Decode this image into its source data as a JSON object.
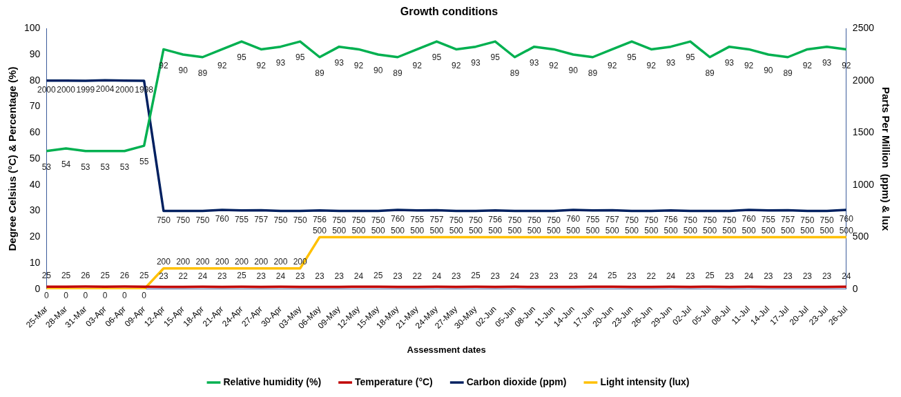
{
  "chart_data": {
    "type": "line",
    "title": "Growth conditions",
    "xlabel": "Assessment dates",
    "ylabel": "Degree Celsius (°C) & Percentage (%)",
    "y2label": "Parts Per Million  (ppm) & lux",
    "categories": [
      "25-Mar",
      "28-Mar",
      "31-Mar",
      "03-Apr",
      "06-Apr",
      "09-Apr",
      "12-Apr",
      "15-Apr",
      "18-Apr",
      "21-Apr",
      "24-Apr",
      "27-Apr",
      "30-Apr",
      "03-May",
      "06-May",
      "09-May",
      "12-May",
      "15-May",
      "18-May",
      "21-May",
      "24-May",
      "27-May",
      "30-May",
      "02-Jun",
      "05-Jun",
      "08-Jun",
      "11-Jun",
      "14-Jun",
      "17-Jun",
      "20-Jun",
      "23-Jun",
      "26-Jun",
      "29-Jun",
      "02-Jul",
      "05-Jul",
      "08-Jul",
      "11-Jul",
      "14-Jul",
      "17-Jul",
      "20-Jul",
      "23-Jul",
      "26-Jul"
    ],
    "series": [
      {
        "name": "Relative humidity (%)",
        "color": "#00b050",
        "values": [
          53,
          54,
          53,
          53,
          53,
          55,
          92,
          90,
          89,
          92,
          95,
          92,
          93,
          95,
          89,
          93,
          92,
          90,
          89,
          92,
          95,
          92,
          93,
          95,
          89,
          93,
          92,
          90,
          89,
          92,
          95,
          92,
          93,
          95,
          89,
          93,
          92,
          90,
          89,
          92,
          93,
          92
        ]
      },
      {
        "name": "Temperature (°C)",
        "color": "#c00000",
        "axis": "y2",
        "values": [
          25,
          25,
          26,
          25,
          26,
          25,
          23,
          22,
          24,
          23,
          25,
          23,
          24,
          23,
          23,
          23,
          24,
          25,
          23,
          22,
          24,
          23,
          25,
          23,
          24,
          23,
          23,
          23,
          24,
          25,
          23,
          22,
          24,
          23,
          25,
          23,
          24,
          23,
          23,
          23,
          23,
          24
        ]
      },
      {
        "name": "Carbon dioxide (ppm)",
        "color": "#002060",
        "axis": "y2",
        "values": [
          2000,
          2000,
          1999,
          2004,
          2000,
          1998,
          750,
          750,
          750,
          760,
          755,
          757,
          750,
          750,
          756,
          750,
          750,
          750,
          760,
          755,
          757,
          750,
          750,
          756,
          750,
          750,
          750,
          760,
          755,
          757,
          750,
          750,
          756,
          750,
          750,
          750,
          760,
          755,
          757,
          750,
          750,
          760
        ]
      },
      {
        "name": "Light intensity (lux)",
        "color": "#ffc000",
        "axis": "y2",
        "values": [
          0,
          0,
          0,
          0,
          0,
          0,
          200,
          200,
          200,
          200,
          200,
          200,
          200,
          200,
          500,
          500,
          500,
          500,
          500,
          500,
          500,
          500,
          500,
          500,
          500,
          500,
          500,
          500,
          500,
          500,
          500,
          500,
          500,
          500,
          500,
          500,
          500,
          500,
          500,
          500,
          500,
          500
        ]
      }
    ],
    "ylim": [
      0,
      100
    ],
    "yticks": [
      0,
      10,
      20,
      30,
      40,
      50,
      60,
      70,
      80,
      90,
      100
    ],
    "y2lim": [
      0,
      2500
    ],
    "y2ticks": [
      0,
      500,
      1000,
      1500,
      2000,
      2500
    ],
    "grid": false,
    "legend": "bottom",
    "marker": "none",
    "line_style": "solid",
    "data_labels": true
  }
}
